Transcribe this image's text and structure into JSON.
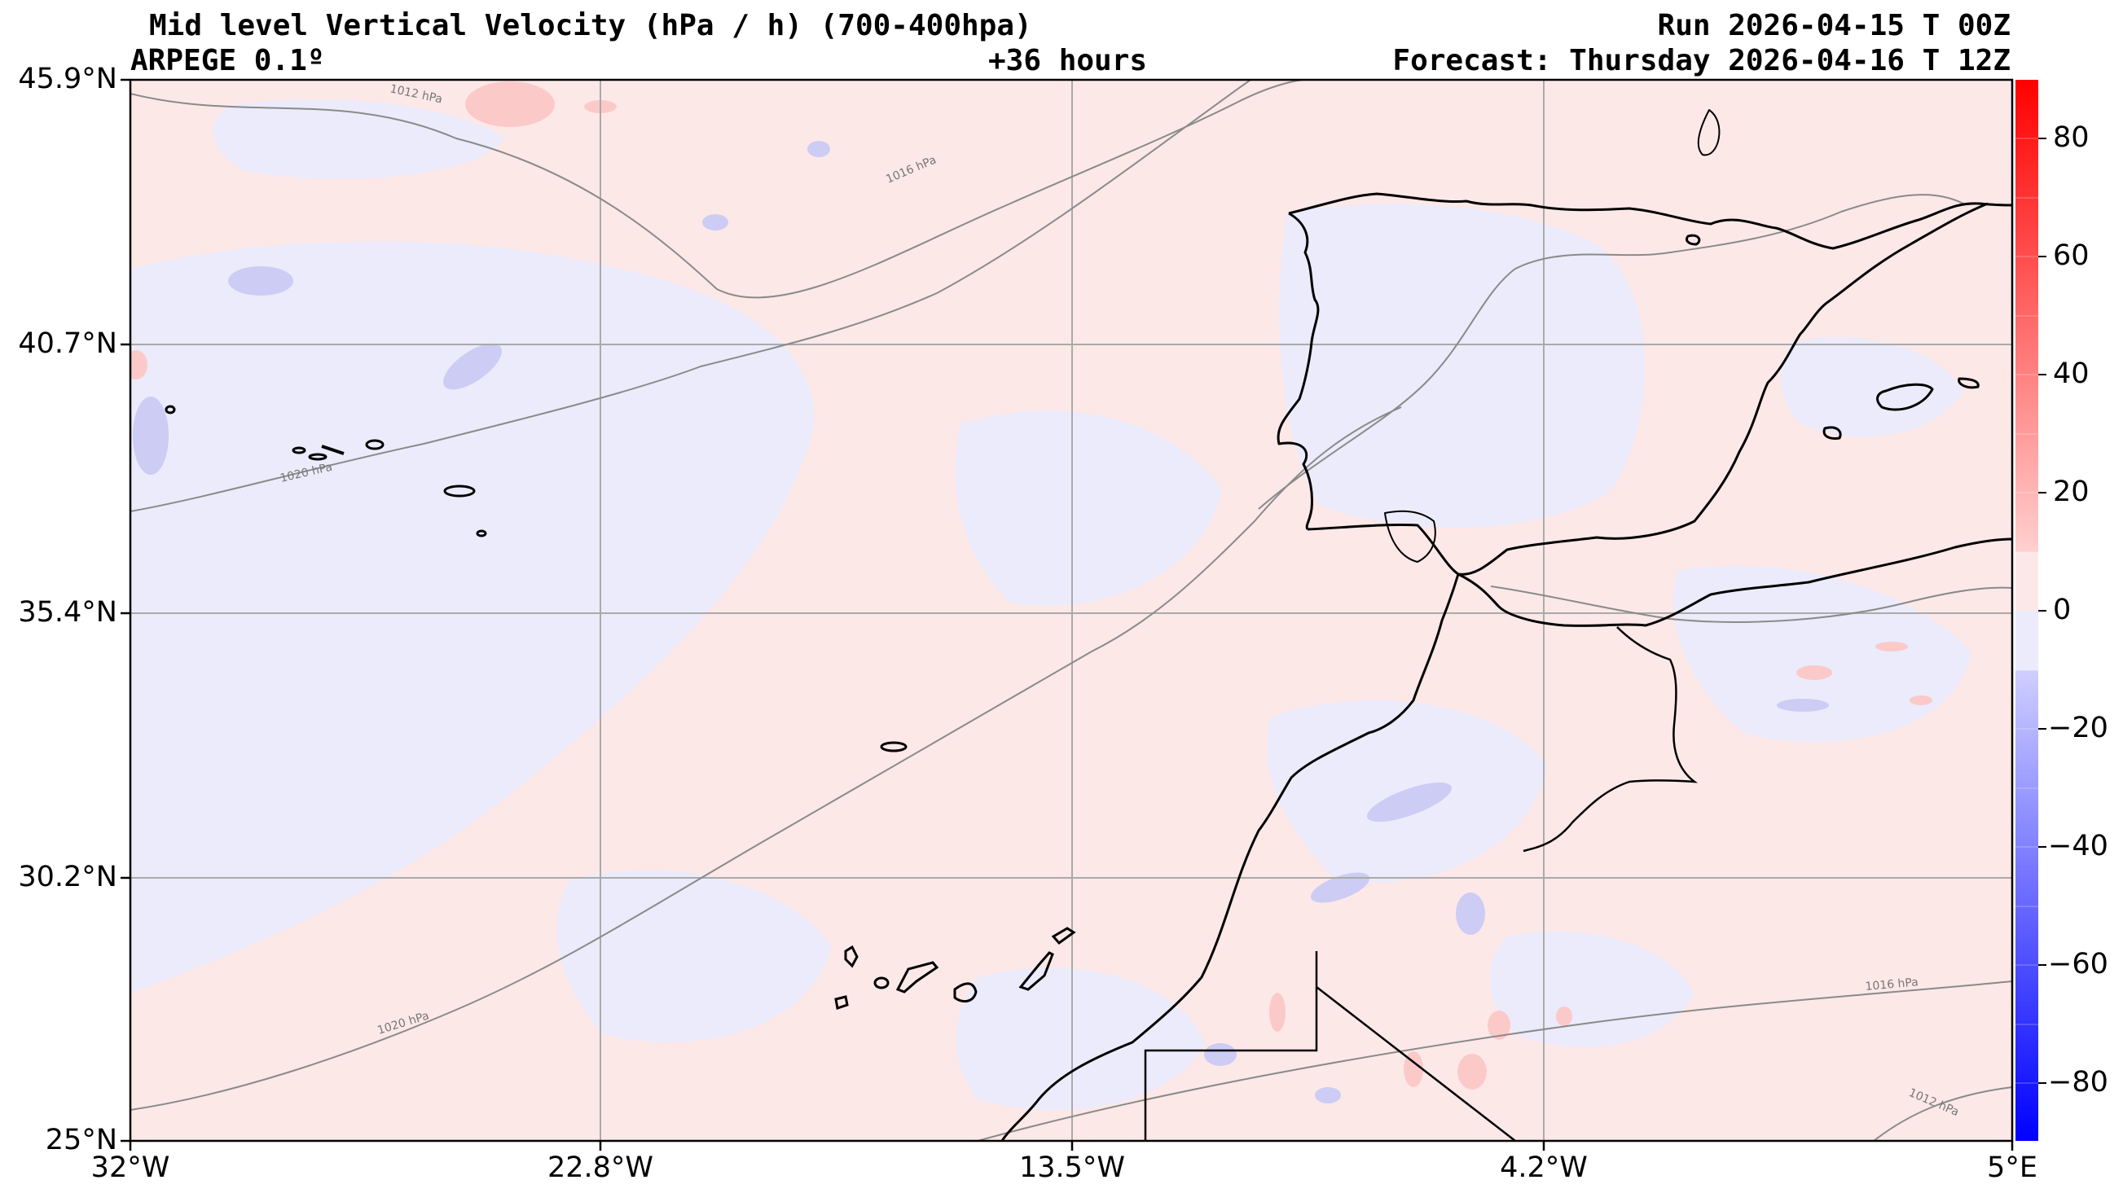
{
  "header": {
    "title": "Mid level Vertical Velocity (hPa / h)  (700-400hpa)",
    "model": "ARPEGE 0.1º",
    "lead_time": "+36 hours",
    "run": "Run 2026-04-15 T 00Z",
    "forecast": "Forecast: Thursday 2026-04-16 T 12Z"
  },
  "axes": {
    "lat_labels": [
      "45.9°N",
      "40.7°N",
      "35.4°N",
      "30.2°N",
      "25°N"
    ],
    "lon_labels": [
      "32°W",
      "22.8°W",
      "13.5°W",
      "4.2°W",
      "5°E"
    ]
  },
  "colorbar": {
    "ticks": [
      "80",
      "60",
      "40",
      "20",
      "0",
      "−20",
      "−40",
      "−60",
      "−80"
    ],
    "range": [
      -90,
      90
    ],
    "positive_color": "#ff0000",
    "negative_color": "#0000ff"
  },
  "isobar_labels": [
    {
      "text": "1012 hPa"
    },
    {
      "text": "1016 hPa"
    },
    {
      "text": "1020 hPa"
    },
    {
      "text": "1020 hPa"
    },
    {
      "text": "1016 hPa"
    },
    {
      "text": "1012 hPa"
    }
  ],
  "colors": {
    "background_positive": "#fde8e8",
    "background_negative": "#ebebfb",
    "coast": "#000000",
    "grid": "#aaaaaa",
    "isobar": "#8a8a8a"
  }
}
